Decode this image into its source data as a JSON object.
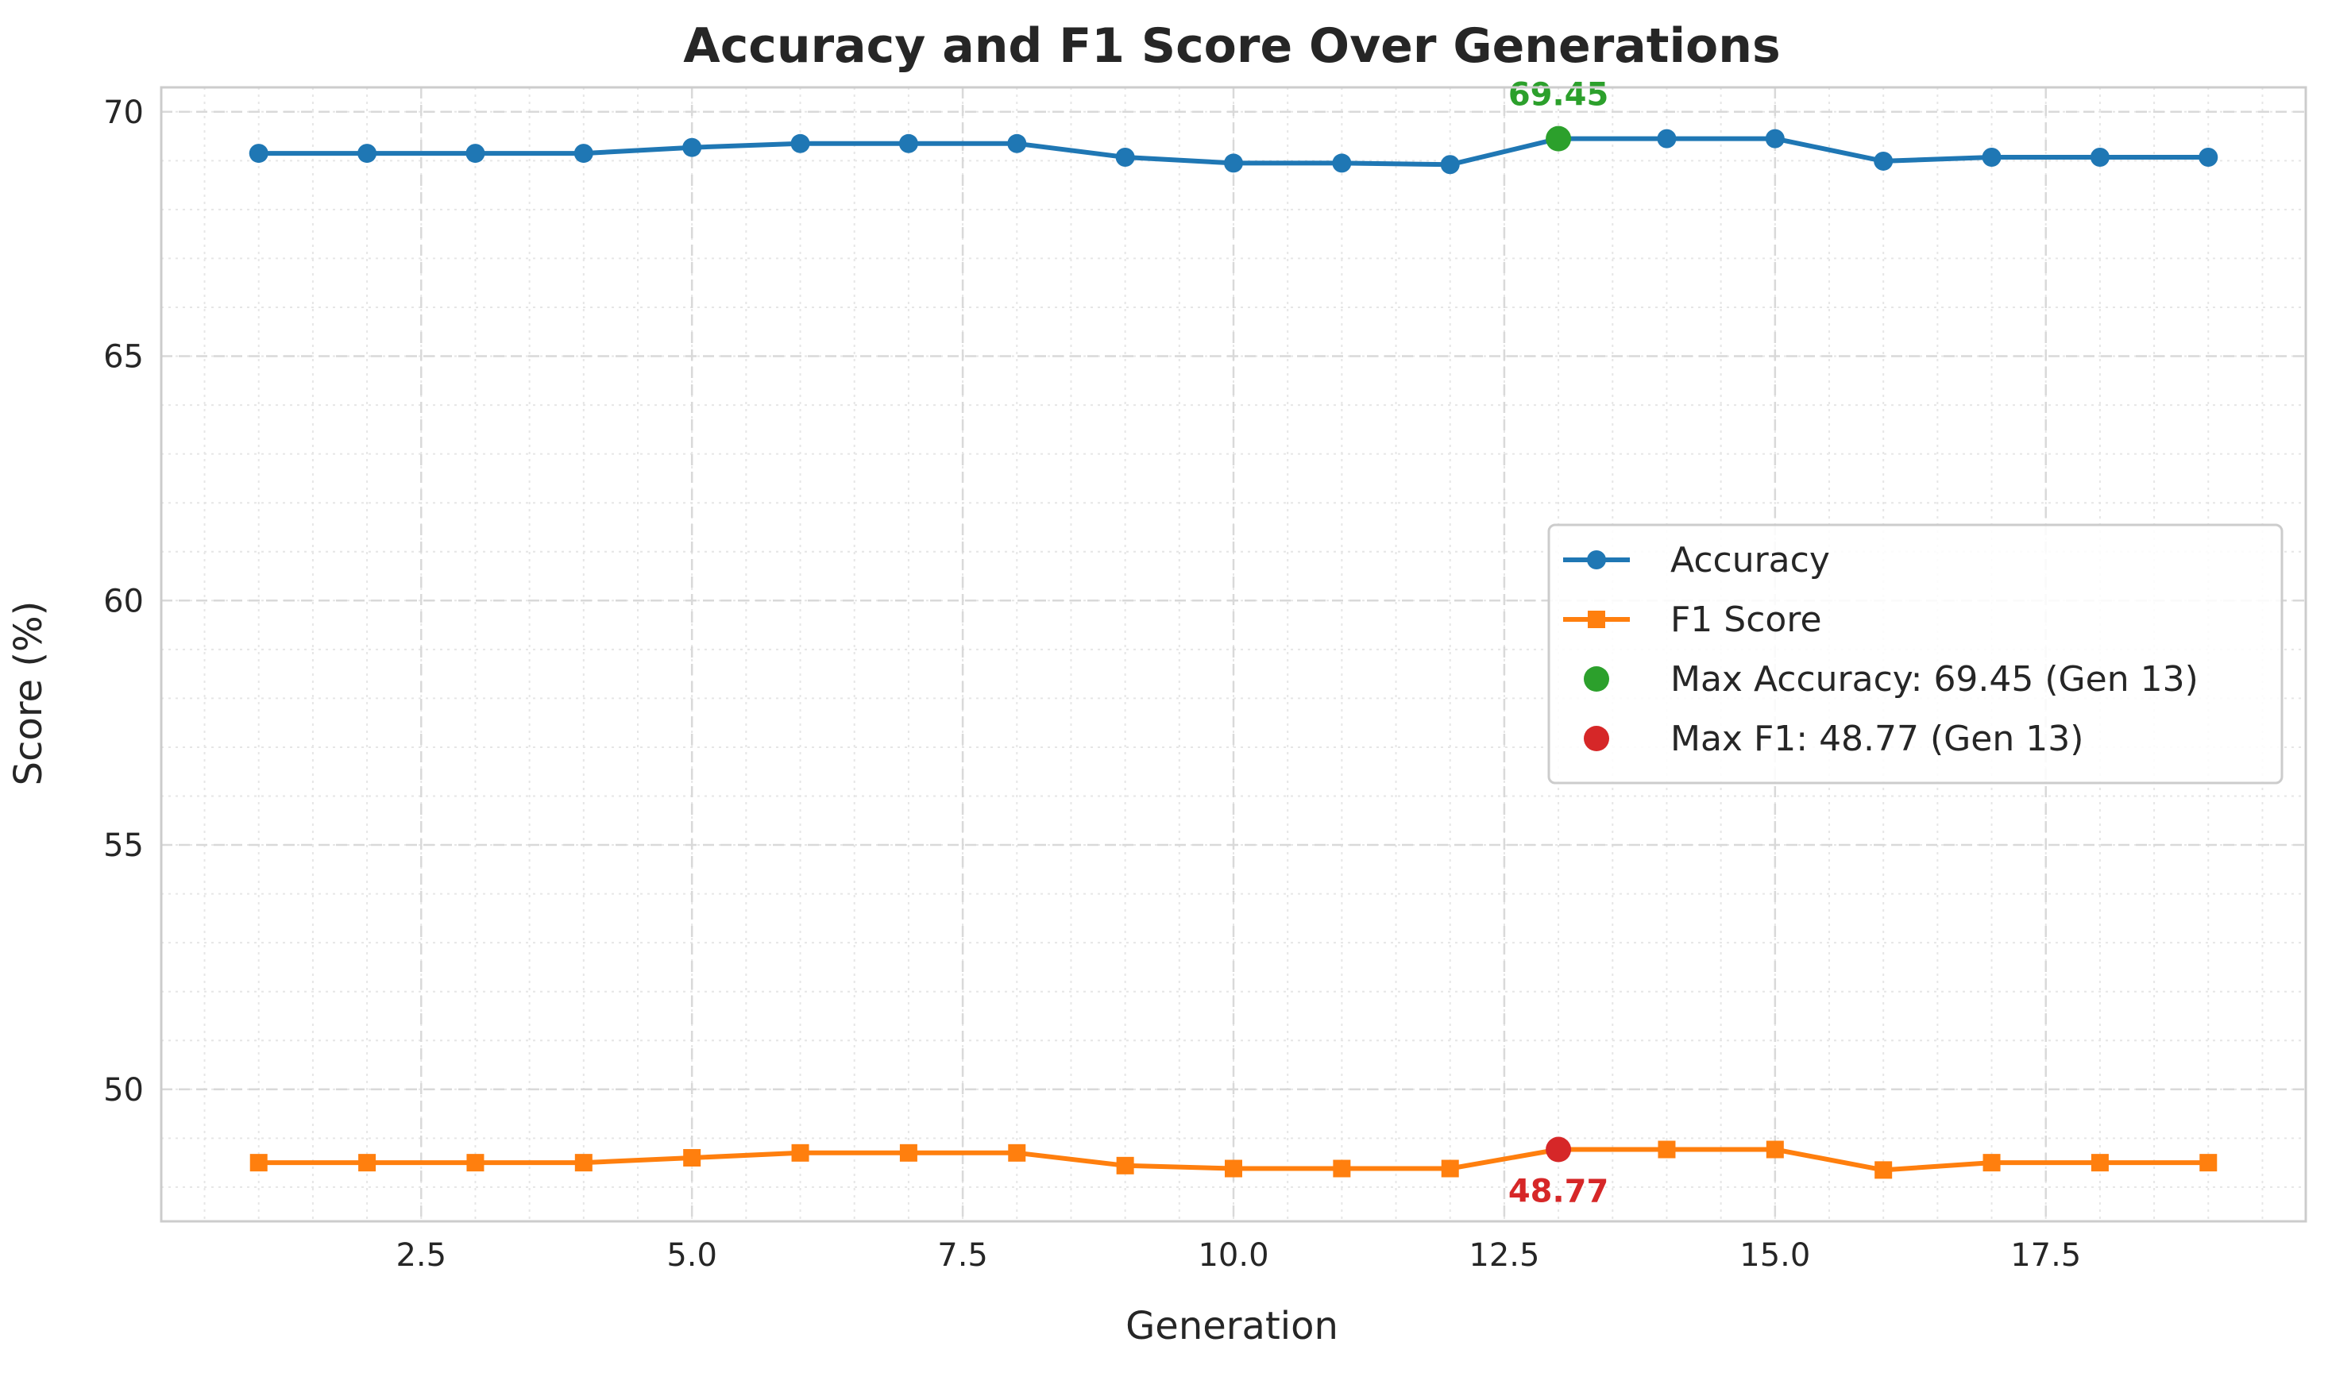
{
  "chart_data": {
    "type": "line",
    "title": "Accuracy and F1 Score Over Generations",
    "xlabel": "Generation",
    "ylabel": "Score (%)",
    "xlim": [
      0.1,
      19.9
    ],
    "ylim": [
      47.3,
      70.5
    ],
    "x_ticks": [
      2.5,
      5.0,
      7.5,
      10.0,
      12.5,
      15.0,
      17.5
    ],
    "x_tick_labels": [
      "2.5",
      "5.0",
      "7.5",
      "10.0",
      "12.5",
      "15.0",
      "17.5"
    ],
    "y_ticks": [
      50,
      55,
      60,
      65,
      70
    ],
    "y_tick_labels": [
      "50",
      "55",
      "60",
      "65",
      "70"
    ],
    "grid": true,
    "minor_grid": true,
    "legend_position": "center-right",
    "x": [
      1,
      2,
      3,
      4,
      5,
      6,
      7,
      8,
      9,
      10,
      11,
      12,
      13,
      14,
      15,
      16,
      17,
      18,
      19
    ],
    "series": [
      {
        "name": "Accuracy",
        "marker": "circle",
        "color": "#1f77b4",
        "values": [
          69.15,
          69.15,
          69.15,
          69.15,
          69.27,
          69.35,
          69.35,
          69.35,
          69.07,
          68.95,
          68.95,
          68.92,
          69.45,
          69.45,
          69.45,
          68.99,
          69.07,
          69.07,
          69.07
        ]
      },
      {
        "name": "F1 Score",
        "marker": "square",
        "color": "#ff7f0e",
        "values": [
          48.5,
          48.5,
          48.5,
          48.5,
          48.6,
          48.7,
          48.7,
          48.7,
          48.44,
          48.38,
          48.38,
          48.38,
          48.77,
          48.77,
          48.77,
          48.35,
          48.5,
          48.5,
          48.5
        ]
      }
    ],
    "highlights": [
      {
        "name": "Max Accuracy: 69.45 (Gen 13)",
        "x": 13,
        "y": 69.45,
        "color": "#2ca02c",
        "label": "69.45",
        "label_position": "above"
      },
      {
        "name": "Max F1: 48.77 (Gen 13)",
        "x": 13,
        "y": 48.77,
        "color": "#d62728",
        "label": "48.77",
        "label_position": "below"
      }
    ]
  }
}
